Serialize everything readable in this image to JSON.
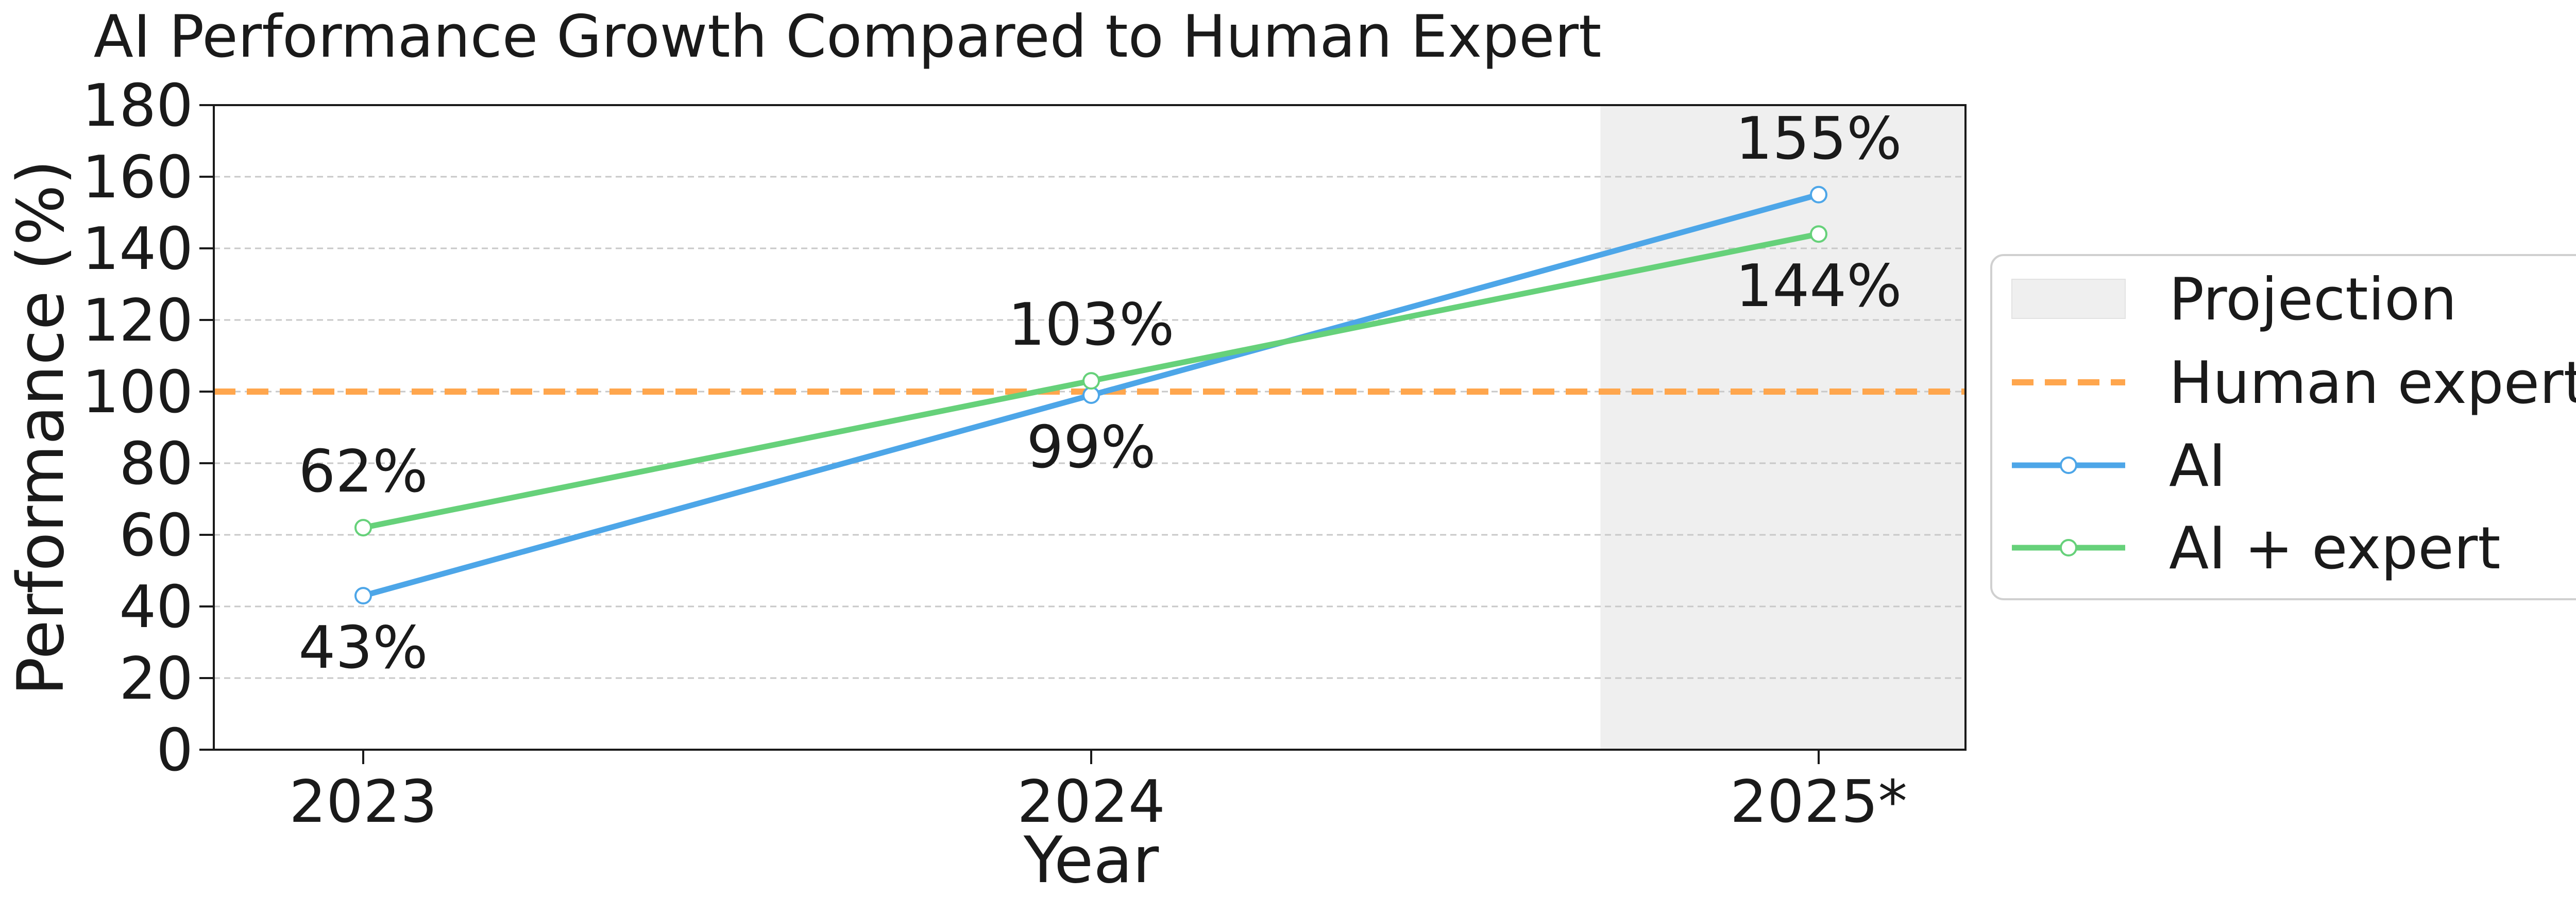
{
  "chart_data": {
    "type": "line",
    "title": "AI Performance Growth Compared to Human Expert",
    "xlabel": "Year",
    "ylabel": "Performance (%)",
    "categories": [
      "2023",
      "2024",
      "2025*"
    ],
    "ylim": [
      0,
      180
    ],
    "yticks": [
      0,
      20,
      40,
      60,
      80,
      100,
      120,
      140,
      160,
      180
    ],
    "grid": "horizontal dashed",
    "series": [
      {
        "name": "AI",
        "values": [
          43,
          99,
          155
        ],
        "color": "#4da6e8",
        "labels": [
          "43%",
          "99%",
          "155%"
        ],
        "label_pos": [
          "below",
          "below",
          "above"
        ]
      },
      {
        "name": "AI + expert",
        "values": [
          62,
          103,
          144
        ],
        "color": "#66d17a",
        "labels": [
          "62%",
          "103%",
          "144%"
        ],
        "label_pos": [
          "above",
          "above",
          "below"
        ]
      }
    ],
    "reference_line": {
      "name": "Human expert",
      "value": 100,
      "color": "#ffa64d",
      "style": "dashed"
    },
    "shaded_region": {
      "name": "Projection",
      "from_year_between": [
        "2024",
        "2025*"
      ],
      "color": "#efefef"
    },
    "legend": {
      "placement": "right",
      "entries": [
        "Projection",
        "Human expert",
        "AI",
        "AI + expert"
      ]
    }
  }
}
